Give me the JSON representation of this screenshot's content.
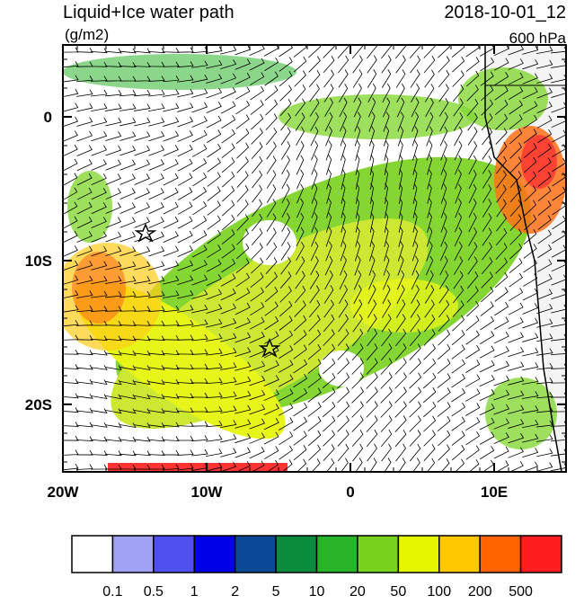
{
  "map": {
    "title": "Liquid+Ice water path",
    "units": "(g/m2)",
    "date": "2018-10-01_12",
    "level": "600 hPa",
    "lonlim": [
      -20,
      15
    ],
    "latlim": [
      -24.7,
      5
    ],
    "lon_ticks": [
      {
        "value": -20,
        "label": "20W"
      },
      {
        "value": -10,
        "label": "10W"
      },
      {
        "value": 0,
        "label": "0"
      },
      {
        "value": 10,
        "label": "10E"
      }
    ],
    "lat_ticks": [
      {
        "value": 0,
        "label": "0"
      },
      {
        "value": -10,
        "label": "10S"
      },
      {
        "value": -20,
        "label": "20S"
      }
    ]
  },
  "colorbar": {
    "colors": [
      "#ffffff",
      "#a0a0f5",
      "#5050f0",
      "#0000e6",
      "#0a4a96",
      "#0a8c3c",
      "#28b428",
      "#78d21e",
      "#e6f500",
      "#ffc800",
      "#ff6400",
      "#ff1e1e"
    ],
    "labels": [
      0.1,
      0.5,
      1,
      2,
      5,
      10,
      20,
      50,
      100,
      200,
      500
    ]
  }
}
